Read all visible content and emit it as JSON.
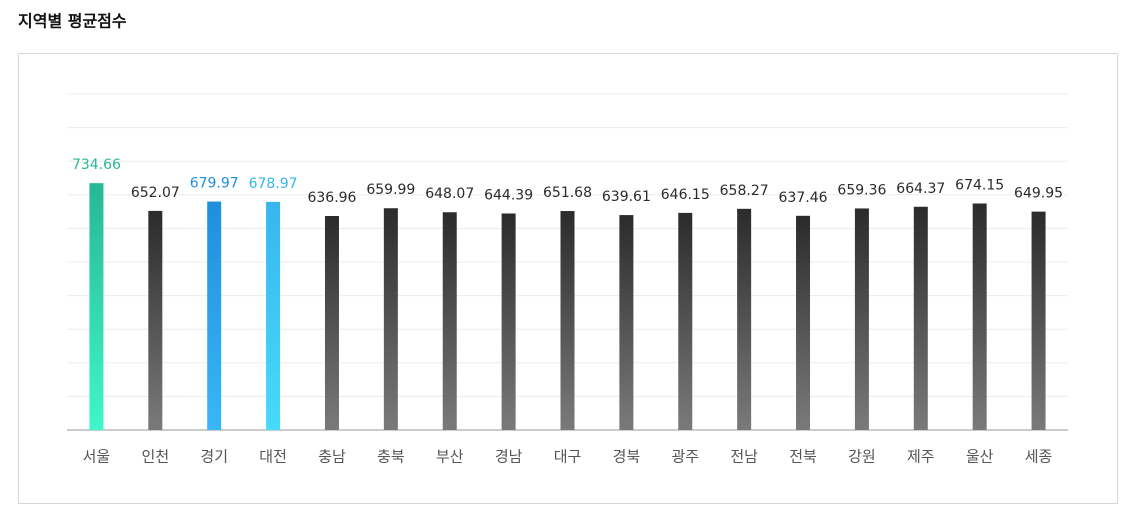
{
  "chart_data": {
    "type": "bar",
    "title": "지역별 평균점수",
    "categories": [
      "서울",
      "인천",
      "경기",
      "대전",
      "충남",
      "충북",
      "부산",
      "경남",
      "대구",
      "경북",
      "광주",
      "전남",
      "전북",
      "강원",
      "제주",
      "울산",
      "세종"
    ],
    "values": [
      734.66,
      652.07,
      679.97,
      678.97,
      636.96,
      659.99,
      648.07,
      644.39,
      651.68,
      639.61,
      646.15,
      658.27,
      637.46,
      659.36,
      664.37,
      674.15,
      649.95
    ],
    "colors": [
      "#27b795",
      "#2b2b2b",
      "#1f8fdc",
      "#37b6ee",
      "#2b2b2b",
      "#2b2b2b",
      "#2b2b2b",
      "#2b2b2b",
      "#2b2b2b",
      "#2b2b2b",
      "#2b2b2b",
      "#2b2b2b",
      "#2b2b2b",
      "#2b2b2b",
      "#2b2b2b",
      "#2b2b2b",
      "#2b2b2b"
    ],
    "colors_bottom": [
      "#3ff7c9",
      "#7a7a7a",
      "#3ab6f6",
      "#47dafb",
      "#7a7a7a",
      "#7a7a7a",
      "#7a7a7a",
      "#7a7a7a",
      "#7a7a7a",
      "#7a7a7a",
      "#7a7a7a",
      "#7a7a7a",
      "#7a7a7a",
      "#7a7a7a",
      "#7a7a7a",
      "#7a7a7a",
      "#7a7a7a"
    ],
    "ylim": [
      0,
      1000
    ],
    "yticks": [
      0,
      100,
      200,
      300,
      400,
      500,
      600,
      700,
      800,
      900,
      1000
    ],
    "grid": true
  }
}
